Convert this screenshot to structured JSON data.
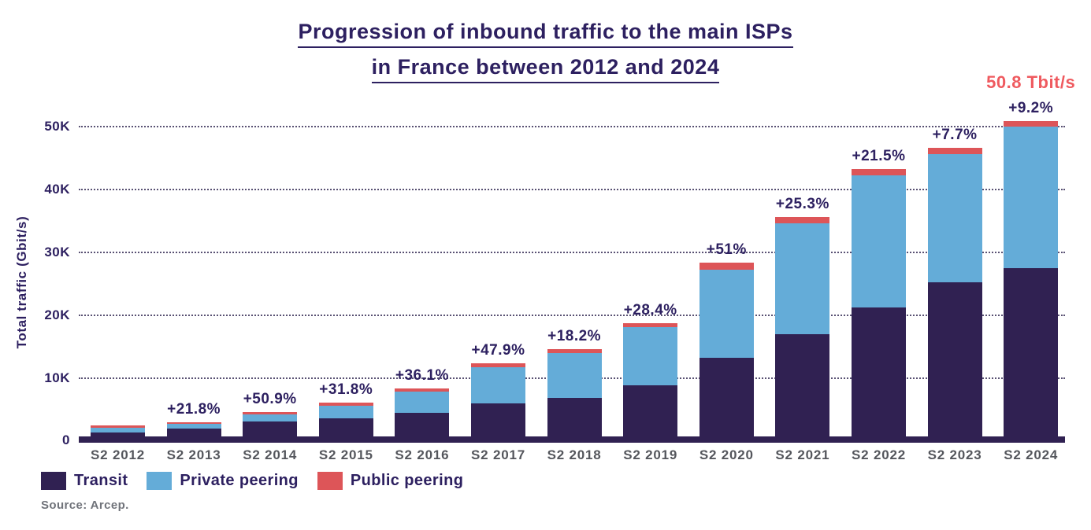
{
  "title": {
    "line1": "Progression of inbound traffic to the main ISPs",
    "line2": "in France between 2012 and 2024"
  },
  "y_axis": {
    "title": "Total traffic (Gbit/s)",
    "ticks": [
      "0",
      "10K",
      "20K",
      "30K",
      "40K",
      "50K"
    ],
    "tick_values": [
      0,
      10000,
      20000,
      30000,
      40000,
      50000
    ]
  },
  "peak_label": {
    "text": "50.8 Tbit/s",
    "bar": "S2 2024",
    "color": "#ef5a5f"
  },
  "legend": {
    "items": [
      {
        "label": "Transit",
        "color": "#302152"
      },
      {
        "label": "Private peering",
        "color": "#64acd8"
      },
      {
        "label": "Public peering",
        "color": "#dd5558"
      }
    ]
  },
  "source": "Source: Arcep.",
  "chart_data": {
    "type": "bar",
    "stacked": true,
    "title": "Progression of inbound traffic to the main ISPs in France between 2012 and 2024",
    "xlabel": "",
    "ylabel": "Total traffic (Gbit/s)",
    "ylim": [
      0,
      51500
    ],
    "grid": "horizontal-dotted",
    "legend_position": "bottom-left",
    "categories": [
      "S2 2012",
      "S2 2013",
      "S2 2014",
      "S2 2015",
      "S2 2016",
      "S2 2017",
      "S2 2018",
      "S2 2019",
      "S2 2020",
      "S2 2021",
      "S2 2022",
      "S2 2023",
      "S2 2024"
    ],
    "series": [
      {
        "name": "Transit",
        "color": "#302152",
        "values": [
          1480,
          2080,
          3130,
          3620,
          4600,
          6050,
          6950,
          8900,
          13300,
          17050,
          21300,
          25200,
          27500
        ]
      },
      {
        "name": "Private peering",
        "color": "#64acd8",
        "values": [
          690,
          690,
          1110,
          2030,
          3270,
          5700,
          7060,
          9260,
          13900,
          17550,
          20890,
          20400,
          22450
        ]
      },
      {
        "name": "Public peering",
        "color": "#dd5558",
        "values": [
          370,
          320,
          430,
          500,
          500,
          630,
          620,
          630,
          1170,
          950,
          1000,
          920,
          850
        ]
      }
    ],
    "totals": [
      2540,
      3090,
      4670,
      6150,
      8370,
      12380,
      14630,
      18790,
      28370,
      35550,
      43190,
      46520,
      50800
    ],
    "growth_labels": [
      "",
      "+21.8%",
      "+50.9%",
      "+31.8%",
      "+36.1%",
      "+47.9%",
      "+18.2%",
      "+28.4%",
      "+51%",
      "+25.3%",
      "+21.5%",
      "+7.7%",
      "+9.2%"
    ],
    "annotation": "50.8 Tbit/s"
  }
}
